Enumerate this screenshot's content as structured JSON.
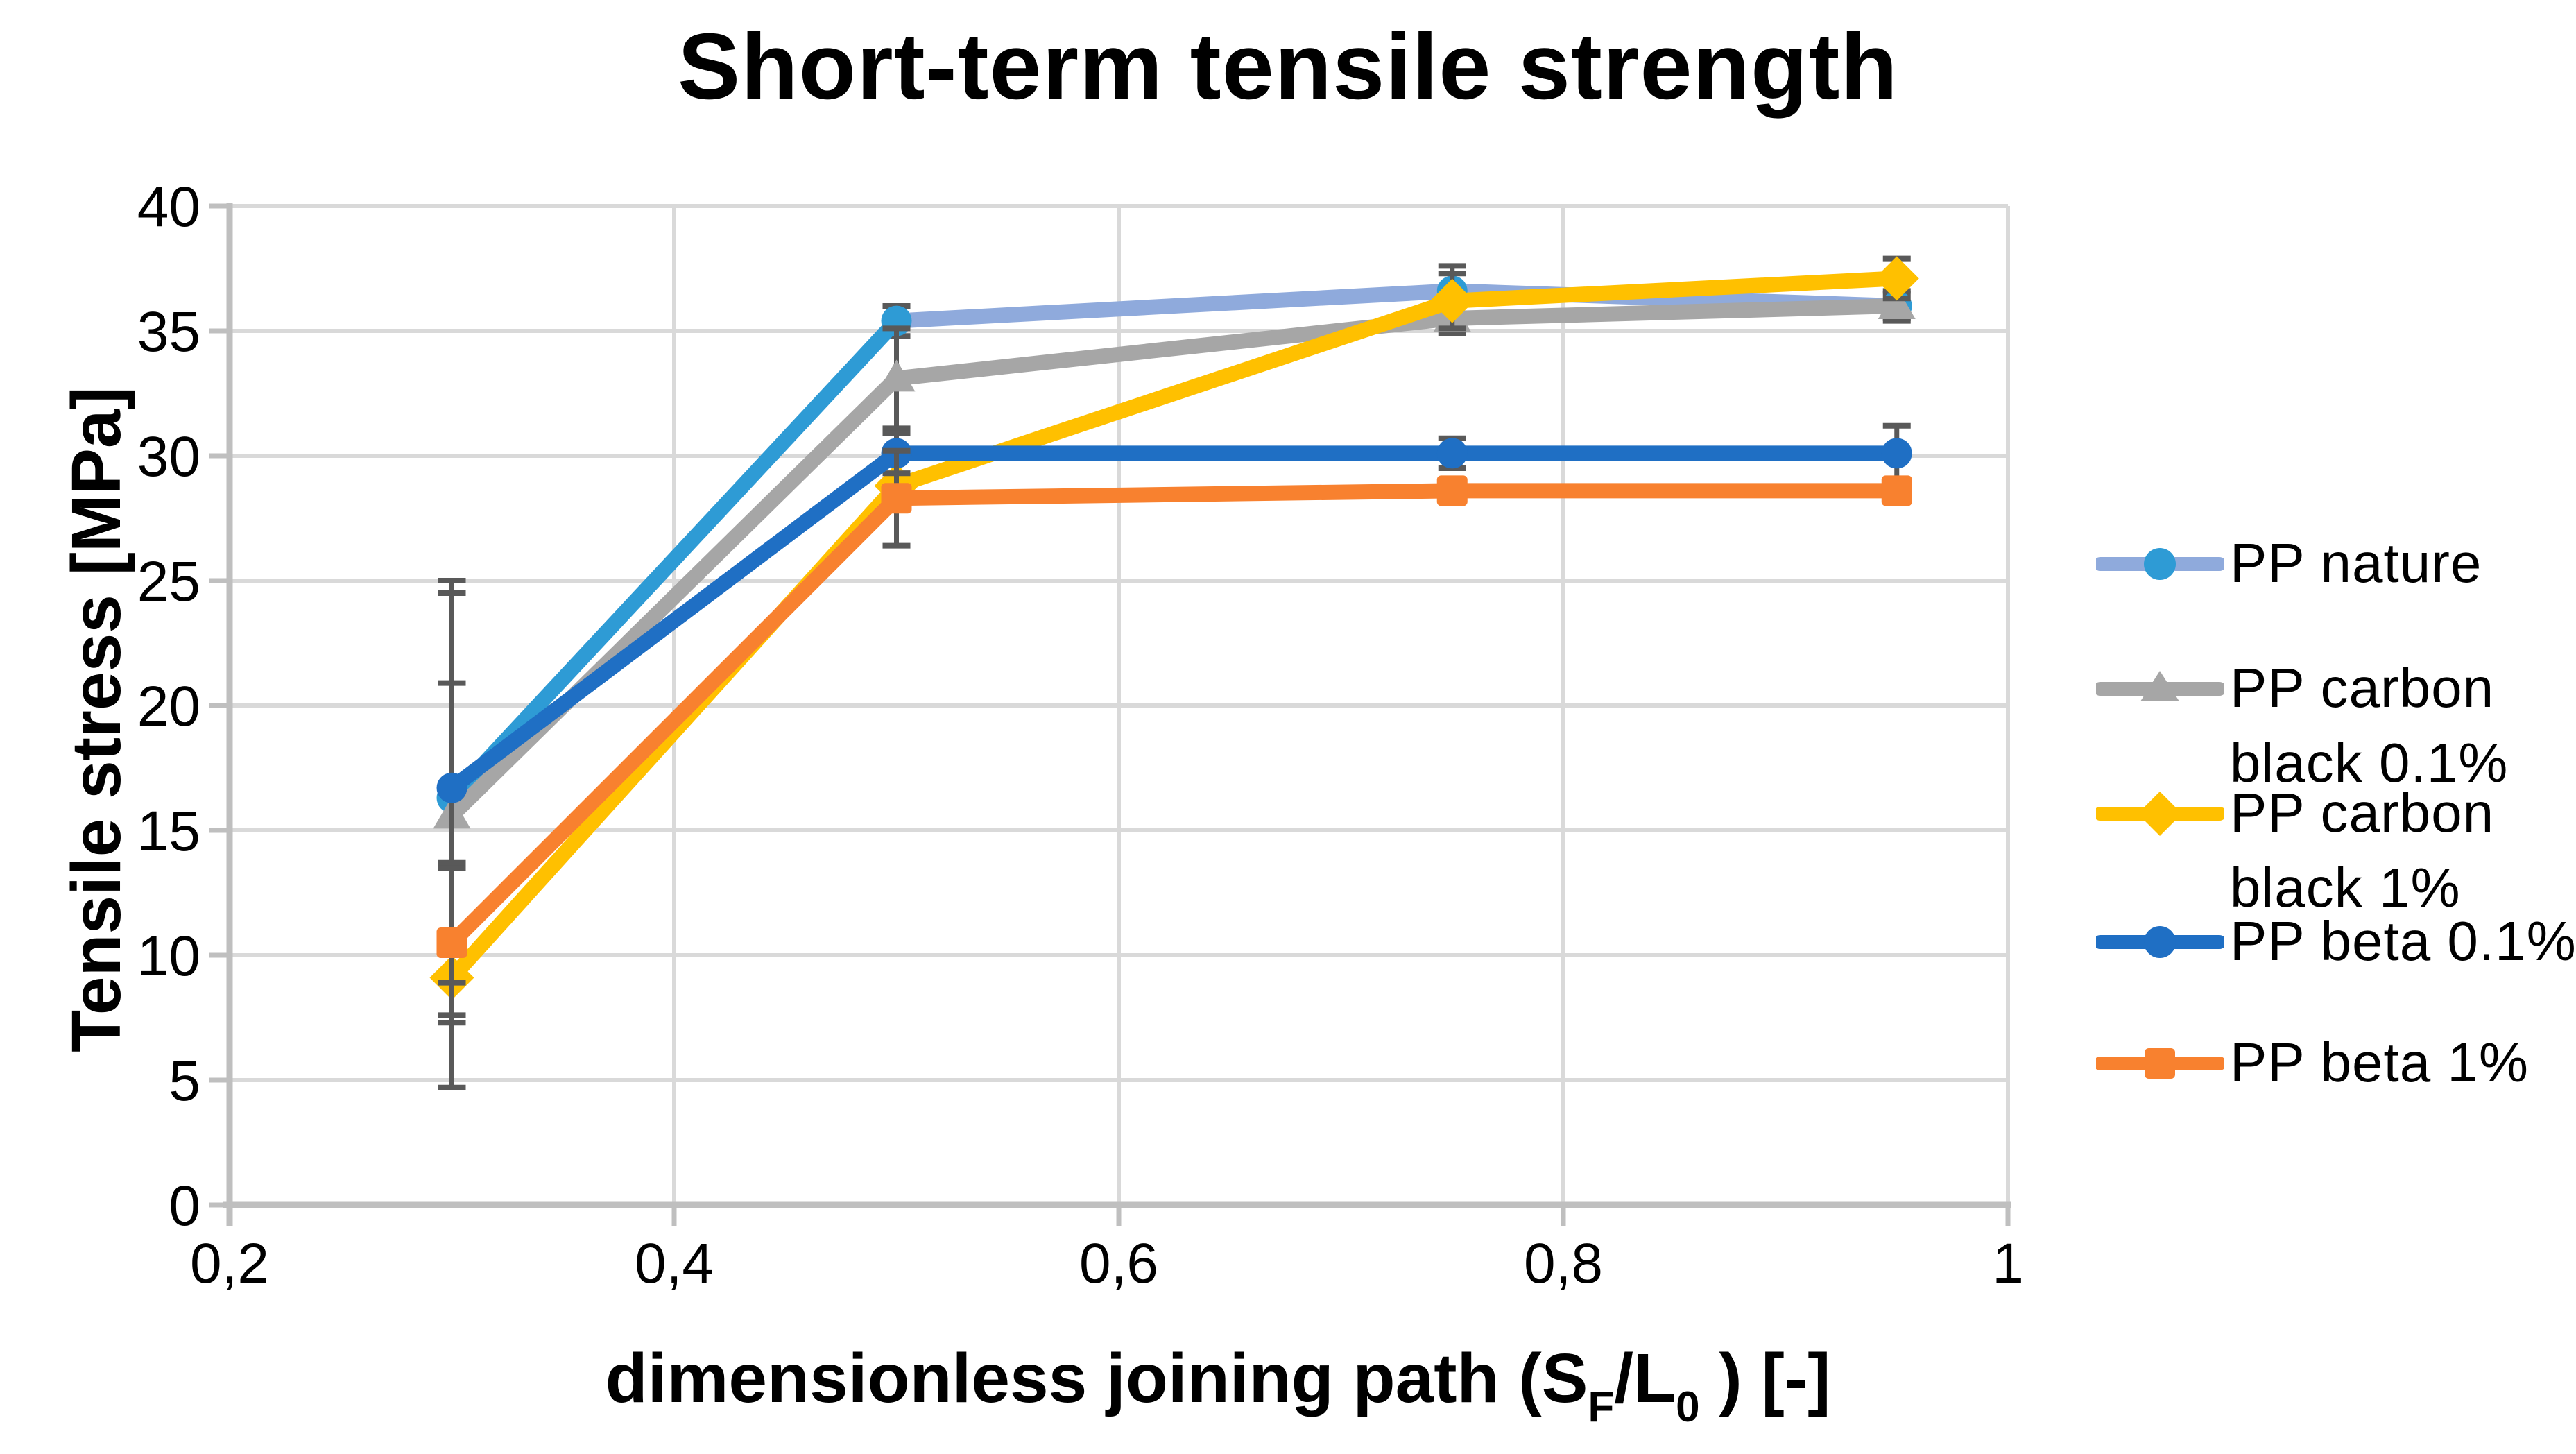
{
  "chart_data": {
    "type": "line",
    "title": "Short-term tensile strength",
    "ylabel": "Tensile stress [MPa]",
    "xlabel_parts": {
      "pre": "dimensionless joining path (S",
      "sub1": "F",
      "mid": "/L",
      "sub2": "0",
      "post": " ) [-]"
    },
    "xlim": [
      0.2,
      1.0
    ],
    "ylim": [
      0,
      40
    ],
    "grid": true,
    "legend_position": "right",
    "x_ticks": [
      {
        "v": 0.2,
        "label": "0,2"
      },
      {
        "v": 0.4,
        "label": "0,4"
      },
      {
        "v": 0.6,
        "label": "0,6"
      },
      {
        "v": 0.8,
        "label": "0,8"
      },
      {
        "v": 1.0,
        "label": "1"
      }
    ],
    "y_ticks": [
      {
        "v": 0,
        "label": "0"
      },
      {
        "v": 5,
        "label": "5"
      },
      {
        "v": 10,
        "label": "10"
      },
      {
        "v": 15,
        "label": "15"
      },
      {
        "v": 20,
        "label": "20"
      },
      {
        "v": 25,
        "label": "25"
      },
      {
        "v": 30,
        "label": "30"
      },
      {
        "v": 35,
        "label": "35"
      },
      {
        "v": 40,
        "label": "40"
      }
    ],
    "x": [
      0.3,
      0.5,
      0.75,
      0.95
    ],
    "series": [
      {
        "name": "PP nature",
        "marker": "circle",
        "line_color": "#8FAADC",
        "marker_color": "#2E9BD5",
        "segment_colors": [
          "#2E9BD5",
          "#8FAADC",
          "#8FAADC"
        ],
        "values": [
          16.3,
          35.4,
          36.6,
          36.0
        ],
        "errors": [
          8.7,
          0.6,
          1.0,
          0.5
        ]
      },
      {
        "name": "PP carbon black 0.1%",
        "marker": "triangle",
        "line_color": "#A6A6A6",
        "marker_color": "#A6A6A6",
        "values": [
          15.6,
          33.1,
          35.5,
          36.0
        ],
        "errors": [
          5.3,
          2.0,
          0.6,
          0.6
        ]
      },
      {
        "name": "PP carbon black 1%",
        "marker": "diamond",
        "line_color": "#FFC000",
        "marker_color": "#FFC000",
        "values": [
          9.1,
          28.8,
          36.2,
          37.1
        ],
        "errors": [
          4.4,
          0.5,
          1.1,
          0.8
        ]
      },
      {
        "name": "PP beta 0.1%",
        "marker": "circle",
        "line_color": "#1F6FC4",
        "marker_color": "#1F6FC4",
        "values": [
          16.7,
          30.1,
          30.1,
          30.1
        ],
        "errors": [
          7.8,
          0.8,
          0.6,
          1.1
        ]
      },
      {
        "name": "PP beta 1%",
        "marker": "square",
        "line_color": "#F8812F",
        "marker_color": "#F8812F",
        "values": [
          10.5,
          28.3,
          28.6,
          28.6
        ],
        "errors": [
          3.2,
          1.9,
          0.3,
          0.4
        ]
      }
    ],
    "error_bar_color": "#595959",
    "gridline_color": "#D9D9D9",
    "axis_line_color": "#BFBFBF",
    "text_color": "#000000"
  }
}
